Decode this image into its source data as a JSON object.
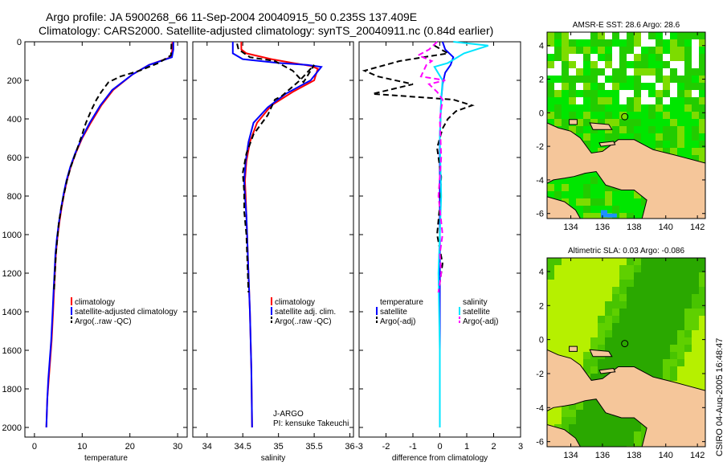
{
  "header": {
    "title_line1": "Argo profile: JA 5900268_66 11-Sep-2004 20040915_50 0.235S 137.409E",
    "title_line2": "Climatology: CARS2000. Satellite-adjusted climatology: synTS_20040911.nc (0.84d earlier)"
  },
  "credit": "CSIRO 04-Aug-2005 16:48:47",
  "colors": {
    "climatology": "#ff0000",
    "satellite": "#0000ff",
    "argo": "#000000",
    "salinity_sat": "#00e5ff",
    "salinity_argo": "#ff00ff",
    "land": "#f5c69a",
    "ocean_bright": "#00e600",
    "ocean_dark": "#30b000",
    "cloud": "#ffffff"
  },
  "chart_data": [
    {
      "type": "line",
      "title": "",
      "xlabel": "temperature",
      "ylabel": "",
      "xlim": [
        -2,
        32
      ],
      "ylim": [
        2050,
        0
      ],
      "xticks": [
        0,
        10,
        20,
        30
      ],
      "yticks": [
        0,
        200,
        400,
        600,
        800,
        1000,
        1200,
        1400,
        1600,
        1800,
        2000
      ],
      "series": [
        {
          "name": "climatology",
          "color": "#ff0000",
          "dash": "",
          "x": [
            28.9,
            28.9,
            28.6,
            24,
            20.5,
            16.5,
            14,
            11.8,
            10,
            8.6,
            7.6,
            6.8,
            6.2,
            5.7,
            5.2,
            4.8,
            4.5,
            4.3,
            4.1,
            3.9,
            3.6,
            3.3,
            3.0,
            2.7,
            2.5
          ],
          "y": [
            0,
            40,
            80,
            120,
            170,
            250,
            330,
            420,
            500,
            580,
            650,
            720,
            790,
            860,
            940,
            1020,
            1100,
            1200,
            1300,
            1400,
            1550,
            1650,
            1750,
            1850,
            2000
          ]
        },
        {
          "name": "satellite-adjusted climatology",
          "color": "#0000ff",
          "dash": "",
          "x": [
            29.1,
            29.1,
            28.8,
            24,
            20.5,
            16.3,
            13.8,
            11.6,
            9.9,
            8.5,
            7.5,
            6.7,
            6.1,
            5.6,
            5.1,
            4.7,
            4.4,
            4.2,
            4.0,
            3.8,
            3.5,
            3.2,
            2.9,
            2.7,
            2.5
          ],
          "y": [
            0,
            40,
            80,
            120,
            170,
            250,
            330,
            420,
            500,
            580,
            650,
            720,
            790,
            860,
            940,
            1020,
            1100,
            1200,
            1300,
            1400,
            1550,
            1650,
            1750,
            1850,
            2000
          ]
        },
        {
          "name": "Argo(..raw -QC)",
          "color": "#000000",
          "dash": "7,4",
          "x": [
            28.7,
            28.6,
            26,
            22,
            18,
            15.5,
            14,
            13,
            12,
            10.8,
            10,
            8.6,
            7.6,
            6.8,
            6.2,
            5.6,
            5.1,
            4.8,
            4.5,
            4.3,
            4.1
          ],
          "y": [
            10,
            70,
            110,
            150,
            180,
            210,
            260,
            300,
            350,
            420,
            480,
            580,
            650,
            720,
            790,
            860,
            940,
            1020,
            1100,
            1200,
            1300
          ]
        }
      ],
      "legend": {
        "position": "lower-center",
        "items": [
          "climatology",
          "satellite-adjusted climatology",
          "Argo(..raw -QC)"
        ]
      }
    },
    {
      "type": "line",
      "title": "",
      "xlabel": "salinity",
      "ylabel": "",
      "xlim": [
        33.8,
        36.05
      ],
      "ylim": [
        2050,
        0
      ],
      "xticks": [
        34,
        34.5,
        35,
        35.5,
        36
      ],
      "yticks": [
        0,
        200,
        400,
        600,
        800,
        1000,
        1200,
        1400,
        1600,
        1800,
        2000
      ],
      "series": [
        {
          "name": "climatology",
          "color": "#ff0000",
          "dash": "",
          "x": [
            34.48,
            34.48,
            34.55,
            34.9,
            35.2,
            35.45,
            35.55,
            35.5,
            35.2,
            34.9,
            34.7,
            34.6,
            34.55,
            34.53,
            34.54,
            34.55,
            34.56,
            34.58,
            34.6,
            34.62,
            34.63
          ],
          "y": [
            0,
            40,
            60,
            90,
            110,
            125,
            140,
            200,
            260,
            330,
            420,
            520,
            620,
            720,
            800,
            900,
            1000,
            1200,
            1400,
            1700,
            2000
          ]
        },
        {
          "name": "satellite adj. clim.",
          "color": "#0000ff",
          "dash": "",
          "x": [
            34.36,
            34.36,
            34.36,
            34.5,
            35.0,
            35.4,
            35.6,
            35.45,
            35.1,
            34.85,
            34.65,
            34.58,
            34.54,
            34.52,
            34.53,
            34.55,
            34.56,
            34.58,
            34.6,
            34.62,
            34.63
          ],
          "y": [
            0,
            40,
            60,
            90,
            110,
            120,
            130,
            200,
            270,
            340,
            420,
            520,
            620,
            720,
            800,
            900,
            1000,
            1200,
            1400,
            1700,
            2000
          ]
        },
        {
          "name": "Argo(..raw -QC)",
          "color": "#000000",
          "dash": "7,4",
          "x": [
            34.42,
            34.44,
            34.6,
            34.95,
            35.2,
            35.35,
            35.5,
            35.3,
            35.05,
            34.95,
            34.85,
            34.65,
            34.55,
            34.5,
            34.52,
            34.52,
            34.55,
            34.58
          ],
          "y": [
            10,
            40,
            80,
            100,
            150,
            210,
            120,
            200,
            280,
            300,
            380,
            480,
            580,
            680,
            780,
            880,
            1000,
            1300
          ]
        }
      ],
      "legend": {
        "position": "lower-center",
        "items": [
          "climatology",
          "satellite adj. clim.",
          "Argo(..raw -QC)"
        ]
      },
      "annotations": [
        "J-ARGO",
        "PI: kensuke Takeuchi"
      ]
    },
    {
      "type": "line",
      "title": "",
      "xlabel": "difference from climatology",
      "ylabel": "",
      "xlim": [
        -3,
        3
      ],
      "ylim": [
        2050,
        0
      ],
      "xticks": [
        -3,
        -2,
        -1,
        0,
        1,
        2,
        3
      ],
      "yticks": [
        0,
        200,
        400,
        600,
        800,
        1000,
        1200,
        1400,
        1600,
        1800,
        2000
      ],
      "series": [
        {
          "name": "temperature satellite",
          "color": "#0000ff",
          "dash": "",
          "x": [
            0.1,
            0.2,
            0.5,
            0.4,
            0.2,
            0.1,
            0.05,
            0.0,
            0.0,
            0.0,
            0.0
          ],
          "y": [
            0,
            40,
            80,
            120,
            160,
            220,
            300,
            500,
            1000,
            1500,
            2000
          ]
        },
        {
          "name": "temperature Argo(-adj)",
          "color": "#000000",
          "dash": "7,4",
          "x": [
            -0.2,
            0.3,
            -1.5,
            -2.8,
            -2.3,
            -1.0,
            -2.5,
            0.5,
            1.2,
            0.6,
            0.3,
            0.1,
            -0.1,
            0.05,
            0.0,
            -0.1,
            0.1,
            0.0,
            -0.05
          ],
          "y": [
            20,
            60,
            100,
            150,
            180,
            220,
            270,
            300,
            330,
            360,
            400,
            450,
            550,
            700,
            850,
            1000,
            1150,
            1250,
            1300
          ]
        },
        {
          "name": "salinity satellite",
          "color": "#00e5ff",
          "dash": "",
          "x": [
            0.5,
            1.8,
            0.9,
            0.3,
            -0.2,
            0.1,
            0.05,
            0.0,
            0.05,
            -0.05,
            0.0,
            0.0
          ],
          "y": [
            0,
            20,
            60,
            110,
            130,
            200,
            300,
            500,
            800,
            1200,
            1600,
            2000
          ]
        },
        {
          "name": "salinity Argo(-adj)",
          "color": "#ff00ff",
          "dash": "7,4",
          "x": [
            -0.1,
            -0.4,
            -0.8,
            -0.3,
            -0.5,
            -0.7,
            0.2,
            -0.4,
            -0.1,
            0.1,
            0.0,
            0.05,
            -0.05,
            0.1,
            0.0,
            0.05,
            -0.05
          ],
          "y": [
            0,
            40,
            70,
            100,
            120,
            180,
            200,
            220,
            260,
            300,
            400,
            600,
            800,
            1000,
            1100,
            1200,
            1300
          ]
        }
      ],
      "legend": {
        "position": "lower-center",
        "items": [
          "temperature",
          "satellite",
          "Argo(-adj)",
          "salinity",
          "satellite",
          "Argo(-adj)"
        ]
      }
    },
    {
      "type": "heatmap",
      "title": "AMSR-E SST: 28.6 Argo: 28.6",
      "xlabel": "",
      "ylabel": "",
      "xlim": [
        132.5,
        142.5
      ],
      "ylim": [
        -6.3,
        4.8
      ],
      "xticks": [
        134,
        136,
        138,
        140,
        142
      ],
      "yticks": [
        -6,
        -4,
        -2,
        0,
        2,
        4
      ],
      "marker": {
        "lon": 137.409,
        "lat": -0.235
      }
    },
    {
      "type": "heatmap",
      "title": "Altimetric SLA: 0.03 Argo: -0.086",
      "xlabel": "",
      "ylabel": "",
      "xlim": [
        132.5,
        142.5
      ],
      "ylim": [
        -6.3,
        4.8
      ],
      "xticks": [
        134,
        136,
        138,
        140,
        142
      ],
      "yticks": [
        -6,
        -4,
        -2,
        0,
        2,
        4
      ],
      "marker": {
        "lon": 137.409,
        "lat": -0.235
      }
    }
  ]
}
